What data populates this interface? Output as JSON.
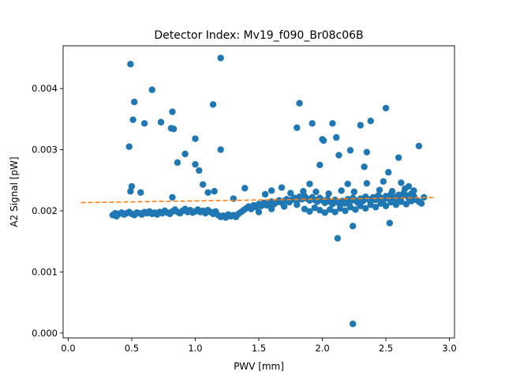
{
  "chart_data": {
    "type": "scatter",
    "title": "Detector Index: Mv19_f090_Br08c06B",
    "xlabel": "PWV [mm]",
    "ylabel": "A2 Signal [pW]",
    "xlim": [
      -0.04,
      3.04
    ],
    "ylim": [
      -8e-05,
      0.0047
    ],
    "xticks": [
      0.0,
      0.5,
      1.0,
      1.5,
      2.0,
      2.5,
      3.0
    ],
    "xtick_labels": [
      "0.0",
      "0.5",
      "1.0",
      "1.5",
      "2.0",
      "2.5",
      "3.0"
    ],
    "yticks": [
      0.0,
      0.001,
      0.002,
      0.003,
      0.004
    ],
    "ytick_labels": [
      "0.000",
      "0.001",
      "0.002",
      "0.003",
      "0.004"
    ],
    "grid": false,
    "colors": {
      "points": "#1f77b4",
      "fit": "#ff7f0e"
    },
    "series": [
      {
        "name": "measurements",
        "kind": "scatter",
        "color": "#1f77b4",
        "points": [
          [
            0.49,
            0.0044
          ],
          [
            1.2,
            0.0045
          ],
          [
            0.66,
            0.00398
          ],
          [
            0.52,
            0.00378
          ],
          [
            0.51,
            0.00349
          ],
          [
            0.6,
            0.00343
          ],
          [
            0.73,
            0.00345
          ],
          [
            0.82,
            0.00362
          ],
          [
            0.81,
            0.00335
          ],
          [
            0.83,
            0.00334
          ],
          [
            0.48,
            0.00305
          ],
          [
            0.92,
            0.00293
          ],
          [
            1.0,
            0.00318
          ],
          [
            0.86,
            0.00279
          ],
          [
            1.0,
            0.00276
          ],
          [
            1.03,
            0.00266
          ],
          [
            1.14,
            0.00374
          ],
          [
            1.2,
            0.003
          ],
          [
            1.82,
            0.00376
          ],
          [
            1.8,
            0.00336
          ],
          [
            1.92,
            0.00343
          ],
          [
            2.0,
            0.00317
          ],
          [
            2.01,
            0.00315
          ],
          [
            2.08,
            0.00343
          ],
          [
            2.11,
            0.0032
          ],
          [
            2.13,
            0.00291
          ],
          [
            1.98,
            0.00275
          ],
          [
            2.22,
            0.00299
          ],
          [
            2.3,
            0.0034
          ],
          [
            2.38,
            0.00347
          ],
          [
            2.35,
            0.00296
          ],
          [
            2.33,
            0.00272
          ],
          [
            2.5,
            0.00368
          ],
          [
            2.6,
            0.00287
          ],
          [
            2.76,
            0.00306
          ],
          [
            2.52,
            0.00263
          ],
          [
            2.12,
            0.00155
          ],
          [
            2.53,
            0.0018
          ],
          [
            2.24,
            0.00015
          ],
          [
            2.24,
            0.00175
          ],
          [
            0.49,
            0.00232
          ],
          [
            0.5,
            0.0024
          ],
          [
            0.57,
            0.0023
          ],
          [
            0.82,
            0.00222
          ],
          [
            1.1,
            0.0023
          ],
          [
            1.15,
            0.00232
          ],
          [
            1.06,
            0.00243
          ],
          [
            1.3,
            0.0022
          ],
          [
            1.39,
            0.00237
          ],
          [
            1.55,
            0.00227
          ],
          [
            1.6,
            0.00233
          ],
          [
            1.68,
            0.00238
          ],
          [
            1.9,
            0.00244
          ],
          [
            2.2,
            0.00244
          ],
          [
            2.35,
            0.00245
          ],
          [
            2.48,
            0.00248
          ],
          [
            2.62,
            0.00246
          ],
          [
            2.68,
            0.0024
          ],
          [
            0.35,
            0.00193
          ],
          [
            0.37,
            0.00196
          ],
          [
            0.38,
            0.00191
          ],
          [
            0.4,
            0.00195
          ],
          [
            0.42,
            0.00197
          ],
          [
            0.44,
            0.00194
          ],
          [
            0.46,
            0.00196
          ],
          [
            0.48,
            0.00198
          ],
          [
            0.5,
            0.00195
          ],
          [
            0.52,
            0.00193
          ],
          [
            0.54,
            0.00197
          ],
          [
            0.56,
            0.00196
          ],
          [
            0.58,
            0.00194
          ],
          [
            0.6,
            0.00198
          ],
          [
            0.62,
            0.00196
          ],
          [
            0.64,
            0.00199
          ],
          [
            0.66,
            0.00195
          ],
          [
            0.68,
            0.00197
          ],
          [
            0.7,
            0.00194
          ],
          [
            0.72,
            0.00198
          ],
          [
            0.74,
            0.00196
          ],
          [
            0.76,
            0.002
          ],
          [
            0.78,
            0.00197
          ],
          [
            0.8,
            0.00195
          ],
          [
            0.82,
            0.00199
          ],
          [
            0.84,
            0.00202
          ],
          [
            0.86,
            0.00198
          ],
          [
            0.88,
            0.00196
          ],
          [
            0.9,
            0.002
          ],
          [
            0.92,
            0.00203
          ],
          [
            0.94,
            0.00198
          ],
          [
            0.96,
            0.00201
          ],
          [
            0.98,
            0.00197
          ],
          [
            1.0,
            0.00199
          ],
          [
            1.02,
            0.00202
          ],
          [
            1.04,
            0.00198
          ],
          [
            1.06,
            0.002
          ],
          [
            1.08,
            0.00196
          ],
          [
            1.1,
            0.00201
          ],
          [
            1.12,
            0.00198
          ],
          [
            1.14,
            0.00195
          ],
          [
            1.16,
            0.00199
          ],
          [
            1.18,
            0.00193
          ],
          [
            1.2,
            0.0019
          ],
          [
            1.22,
            0.00192
          ],
          [
            1.24,
            0.00189
          ],
          [
            1.26,
            0.00194
          ],
          [
            1.28,
            0.00191
          ],
          [
            1.3,
            0.00193
          ],
          [
            1.32,
            0.0019
          ],
          [
            1.34,
            0.00195
          ],
          [
            1.36,
            0.00198
          ],
          [
            1.38,
            0.00201
          ],
          [
            1.4,
            0.00204
          ],
          [
            1.42,
            0.00207
          ],
          [
            1.44,
            0.00203
          ],
          [
            1.46,
            0.00209
          ],
          [
            1.48,
            0.00206
          ],
          [
            1.5,
            0.00211
          ],
          [
            1.52,
            0.00208
          ],
          [
            1.54,
            0.00213
          ],
          [
            1.56,
            0.00209
          ],
          [
            1.58,
            0.00212
          ],
          [
            1.6,
            0.00215
          ],
          [
            1.62,
            0.00211
          ],
          [
            1.64,
            0.00214
          ],
          [
            1.66,
            0.00217
          ],
          [
            1.68,
            0.00213
          ],
          [
            1.7,
            0.00216
          ],
          [
            1.72,
            0.00219
          ],
          [
            1.74,
            0.00214
          ],
          [
            1.76,
            0.00218
          ],
          [
            1.78,
            0.00221
          ],
          [
            1.8,
            0.00216
          ],
          [
            1.82,
            0.00223
          ],
          [
            1.84,
            0.00219
          ],
          [
            1.86,
            0.00224
          ],
          [
            1.88,
            0.0022
          ],
          [
            1.9,
            0.00217
          ],
          [
            1.92,
            0.00222
          ],
          [
            1.94,
            0.00218
          ],
          [
            1.96,
            0.00215
          ],
          [
            1.98,
            0.00221
          ],
          [
            2.0,
            0.00217
          ],
          [
            2.02,
            0.00213
          ],
          [
            2.04,
            0.00219
          ],
          [
            2.06,
            0.00215
          ],
          [
            2.08,
            0.00211
          ],
          [
            2.1,
            0.00218
          ],
          [
            2.12,
            0.00214
          ],
          [
            2.14,
            0.0021
          ],
          [
            2.16,
            0.00216
          ],
          [
            2.18,
            0.00212
          ],
          [
            2.2,
            0.00219
          ],
          [
            2.22,
            0.00215
          ],
          [
            2.24,
            0.00221
          ],
          [
            2.26,
            0.00217
          ],
          [
            2.28,
            0.00213
          ],
          [
            2.3,
            0.0022
          ],
          [
            2.32,
            0.00216
          ],
          [
            2.34,
            0.00223
          ],
          [
            2.36,
            0.00219
          ],
          [
            2.38,
            0.00215
          ],
          [
            2.4,
            0.00222
          ],
          [
            2.42,
            0.00218
          ],
          [
            2.44,
            0.00225
          ],
          [
            2.46,
            0.00221
          ],
          [
            2.48,
            0.00217
          ],
          [
            2.5,
            0.00224
          ],
          [
            2.52,
            0.0022
          ],
          [
            2.54,
            0.00227
          ],
          [
            2.56,
            0.00223
          ],
          [
            2.58,
            0.00219
          ],
          [
            2.6,
            0.00226
          ],
          [
            2.62,
            0.00222
          ],
          [
            2.64,
            0.00229
          ],
          [
            2.66,
            0.00225
          ],
          [
            2.68,
            0.00221
          ],
          [
            2.7,
            0.00228
          ],
          [
            2.72,
            0.00224
          ],
          [
            2.74,
            0.00218
          ],
          [
            2.76,
            0.00215
          ],
          [
            2.78,
            0.00212
          ],
          [
            2.8,
            0.00222
          ],
          [
            1.86,
            0.00203
          ],
          [
            1.9,
            0.00199
          ],
          [
            1.94,
            0.00205
          ],
          [
            1.98,
            0.00201
          ],
          [
            2.02,
            0.00197
          ],
          [
            2.06,
            0.00202
          ],
          [
            2.1,
            0.00198
          ],
          [
            2.14,
            0.00204
          ],
          [
            2.18,
            0.002
          ],
          [
            2.22,
            0.00206
          ],
          [
            2.26,
            0.00202
          ],
          [
            2.3,
            0.00208
          ],
          [
            2.34,
            0.00204
          ],
          [
            2.38,
            0.0021
          ],
          [
            2.42,
            0.00206
          ],
          [
            2.46,
            0.00212
          ],
          [
            2.5,
            0.00208
          ],
          [
            2.54,
            0.00214
          ],
          [
            2.58,
            0.0021
          ],
          [
            2.62,
            0.00215
          ],
          [
            2.66,
            0.00211
          ],
          [
            2.7,
            0.00216
          ],
          [
            1.5,
            0.00198
          ],
          [
            1.6,
            0.00203
          ],
          [
            1.7,
            0.00207
          ],
          [
            1.8,
            0.0021
          ],
          [
            1.75,
            0.00229
          ],
          [
            1.85,
            0.00232
          ],
          [
            1.95,
            0.00231
          ],
          [
            2.05,
            0.00228
          ],
          [
            2.15,
            0.00233
          ],
          [
            2.25,
            0.00231
          ],
          [
            2.45,
            0.00234
          ],
          [
            2.55,
            0.00232
          ],
          [
            2.65,
            0.00236
          ],
          [
            2.72,
            0.00233
          ]
        ]
      },
      {
        "name": "fit",
        "kind": "line",
        "style": "dashed",
        "color": "#ff7f0e",
        "points": [
          [
            0.1,
            0.002135
          ],
          [
            2.88,
            0.002218
          ]
        ]
      }
    ]
  }
}
